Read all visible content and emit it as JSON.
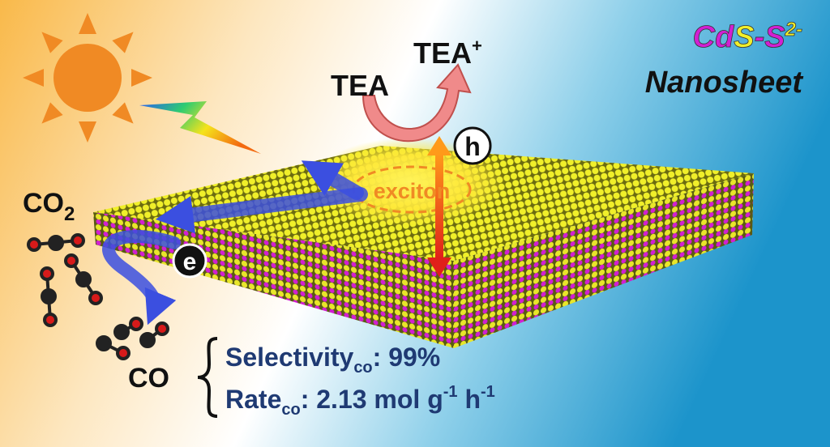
{
  "title": {
    "parts": [
      "Cd",
      "S",
      "-",
      "S",
      "2-"
    ],
    "subtitle": "Nanosheet"
  },
  "labels": {
    "tea": "TEA",
    "tea_plus": [
      "TEA",
      "+"
    ],
    "hole": "h",
    "electron": "e",
    "exciton": "exciton",
    "co2": [
      "CO",
      "2"
    ],
    "co": "CO"
  },
  "results": {
    "selectivity": [
      "Selectivity",
      "co",
      ": 99%"
    ],
    "rate": [
      "Rate",
      "co",
      ": 2.13 mol g",
      "-1",
      " h",
      "-1"
    ]
  }
}
